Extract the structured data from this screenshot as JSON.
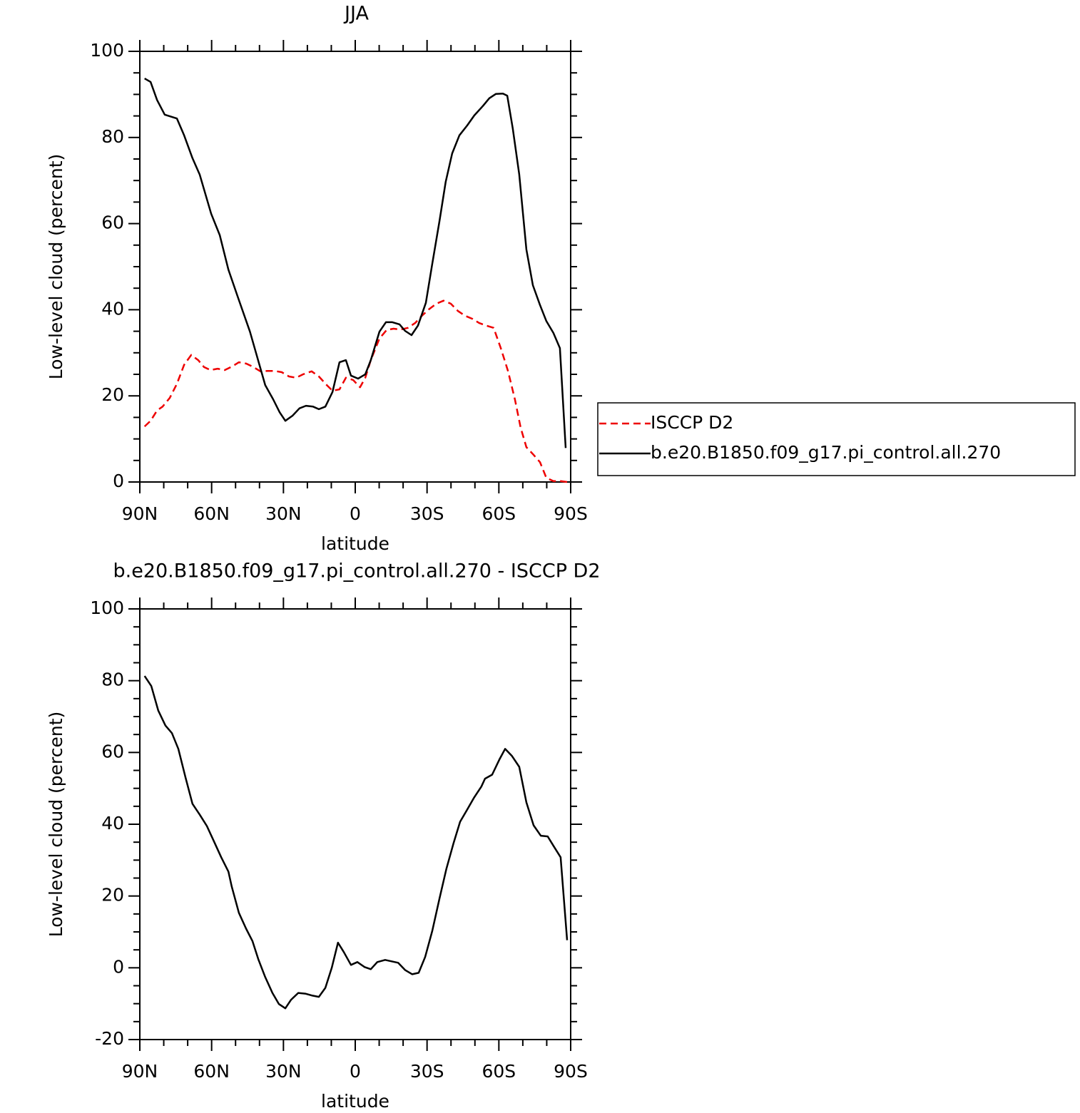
{
  "chart_data": [
    {
      "type": "line",
      "title": "JJA",
      "xlabel": "latitude",
      "ylabel": "Low-level cloud (percent)",
      "xlim": [
        90,
        -90
      ],
      "ylim": [
        0,
        100
      ],
      "xticks": [
        {
          "value": 90,
          "label": "90N"
        },
        {
          "value": 60,
          "label": "60N"
        },
        {
          "value": 30,
          "label": "30N"
        },
        0,
        {
          "value": -30,
          "label": "30S"
        },
        {
          "value": -60,
          "label": "60S"
        },
        {
          "value": -90,
          "label": "90S"
        }
      ],
      "yticks": [
        0,
        20,
        40,
        60,
        80,
        100
      ],
      "legend": "right",
      "series": [
        {
          "name": "ISCCP D2",
          "color": "#ee0000",
          "line_style": "dashed",
          "x": [
            88,
            85.5,
            82.8,
            80.5,
            77.5,
            74.5,
            71.5,
            68.5,
            65.6,
            63.2,
            60.5,
            57.5,
            54.5,
            51.5,
            48.6,
            45.6,
            42.6,
            39.6,
            36.7,
            33.7,
            30.7,
            27.7,
            24.7,
            21.8,
            18.2,
            15.2,
            11.9,
            9.5,
            6.6,
            3.9,
            0.9,
            -2,
            -4.2,
            -6.5,
            -10.1,
            -13.1,
            -16,
            -19,
            -22,
            -25,
            -28,
            -31,
            -33.9,
            -36.9,
            -39.9,
            -42.9,
            -45.9,
            -48.9,
            -51.8,
            -54.8,
            -57.8,
            -60.8,
            -63.8,
            -66.7,
            -69.1,
            -71.5,
            -74.5,
            -77.2,
            -79.8,
            -82.8,
            -85.8,
            -88.5
          ],
          "values": [
            12.9,
            14.2,
            16.6,
            17.5,
            19.5,
            22.8,
            27.2,
            29.5,
            28.3,
            26.7,
            26,
            26.3,
            26,
            26.8,
            27.8,
            27.5,
            26.7,
            25.7,
            25.8,
            25.8,
            25.5,
            24.5,
            24.2,
            25,
            25.7,
            24.5,
            22.5,
            21.2,
            21.5,
            24.2,
            23.7,
            22,
            24.2,
            28.3,
            33.3,
            35.3,
            35.6,
            35.4,
            35.8,
            36.9,
            38.7,
            40.2,
            41.4,
            42.1,
            41.4,
            39.7,
            38.6,
            37.9,
            36.9,
            36.3,
            35.8,
            31.1,
            25.8,
            19.2,
            12.6,
            8.1,
            6.3,
            4.6,
            1,
            0.2,
            0.2,
            0
          ]
        },
        {
          "name": "b.e20.B1850.f09_g17.pi_control.all.270",
          "color": "#000000",
          "line_style": "solid",
          "x": [
            88,
            85.5,
            82.8,
            79.6,
            74.5,
            71.5,
            68,
            65,
            60.2,
            56.6,
            53,
            49.2,
            44,
            41,
            37.6,
            34.3,
            31.6,
            29.2,
            26.2,
            23.3,
            20.6,
            17.6,
            15.2,
            12.5,
            9.5,
            6.6,
            3.9,
            1.8,
            -1.2,
            -4.2,
            -6.5,
            -10.1,
            -12.8,
            -15.5,
            -18.5,
            -20.8,
            -23.5,
            -26.2,
            -29.5,
            -32.2,
            -35.2,
            -37.8,
            -40.5,
            -43.5,
            -46.8,
            -49.7,
            -53.3,
            -56,
            -58.7,
            -61.7,
            -63.5,
            -65.8,
            -68.5,
            -71.5,
            -74.2,
            -77.2,
            -79.8,
            -82.8,
            -85.5,
            -87.9
          ],
          "values": [
            93.7,
            92.9,
            88.7,
            85.3,
            84.4,
            80.5,
            75.2,
            71.4,
            62.3,
            57.3,
            49.3,
            43.2,
            34.9,
            29.1,
            22.5,
            19.2,
            16.2,
            14.2,
            15.4,
            17.1,
            17.7,
            17.5,
            16.9,
            17.5,
            20.9,
            27.8,
            28.3,
            24.7,
            24,
            25,
            28.3,
            34.9,
            37.1,
            37.1,
            36.6,
            35.1,
            34.1,
            36.3,
            41.6,
            50.7,
            60.6,
            69.7,
            76.3,
            80.5,
            82.8,
            85.1,
            87.3,
            89.1,
            90.1,
            90.2,
            89.7,
            82.1,
            71.4,
            54,
            45.7,
            41.1,
            37.4,
            34.6,
            31.1,
            7.9
          ]
        }
      ]
    },
    {
      "type": "line",
      "title": "b.e20.B1850.f09_g17.pi_control.all.270 - ISCCP D2",
      "xlabel": "latitude",
      "ylabel": "Low-level cloud (percent)",
      "xlim": [
        90,
        -90
      ],
      "ylim": [
        -20,
        100
      ],
      "xticks": [
        {
          "value": 90,
          "label": "90N"
        },
        {
          "value": 60,
          "label": "60N"
        },
        {
          "value": 30,
          "label": "30N"
        },
        0,
        {
          "value": -30,
          "label": "30S"
        },
        {
          "value": -60,
          "label": "60S"
        },
        {
          "value": -90,
          "label": "90S"
        }
      ],
      "yticks": [
        -20,
        0,
        20,
        40,
        60,
        80,
        100
      ],
      "color": "#000000",
      "line_style": "solid",
      "x": [
        88,
        85.2,
        82.3,
        79.3,
        76.6,
        73.9,
        70.9,
        68,
        65,
        62,
        59,
        56,
        53,
        51.6,
        48.6,
        45.6,
        42.9,
        40.5,
        37.6,
        34.6,
        31.9,
        29.2,
        26.8,
        23.8,
        20.9,
        18.2,
        15.2,
        12.5,
        9.8,
        7.2,
        4.8,
        1.8,
        -0.9,
        -3.9,
        -6.5,
        -9.2,
        -12.5,
        -15.2,
        -17.9,
        -20.8,
        -23.8,
        -26.5,
        -29.2,
        -32.2,
        -35.2,
        -38.1,
        -41.1,
        -43.8,
        -46.8,
        -49.7,
        -52.7,
        -54.2,
        -57.2,
        -60.2,
        -62.6,
        -65.5,
        -68.5,
        -71.5,
        -74.5,
        -77.5,
        -80.4,
        -82.8,
        -85.8,
        -88.5
      ],
      "values": [
        81.3,
        78.5,
        71.7,
        67.5,
        65.4,
        61,
        53,
        45.7,
        42.7,
        39.5,
        35.2,
        30.8,
        26.8,
        22.6,
        15.3,
        10.9,
        7.4,
        2.4,
        -2.6,
        -7,
        -10.1,
        -11.3,
        -8.9,
        -7,
        -7.2,
        -7.7,
        -8.1,
        -5.6,
        0,
        7,
        4.4,
        0.8,
        1.6,
        0.2,
        -0.4,
        1.6,
        2.2,
        1.8,
        1.4,
        -0.6,
        -1.8,
        -1.4,
        3,
        10.3,
        19.3,
        27.6,
        34.8,
        40.7,
        44.1,
        47.5,
        50.5,
        52.7,
        53.8,
        58,
        61,
        59,
        56,
        46.1,
        39.7,
        36.8,
        36.6,
        34,
        30.8,
        7.7
      ]
    }
  ]
}
